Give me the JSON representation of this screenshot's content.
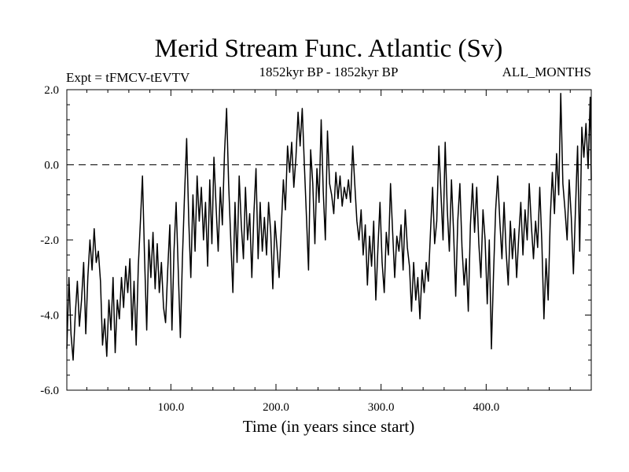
{
  "chart_data": {
    "type": "line",
    "title": "Merid Stream Func. Atlantic (Sv)",
    "subtitle_left": "Expt = tFMCV-tEVTV",
    "subtitle_center": "1852kyr BP - 1852kyr BP",
    "subtitle_right": "ALL_MONTHS",
    "xlabel": "Time (in years since start)",
    "ylabel": "",
    "xlim": [
      1,
      500
    ],
    "ylim": [
      -6.0,
      2.0
    ],
    "xticks": [
      100,
      200,
      300,
      400
    ],
    "xtick_labels": [
      "100.0",
      "200.0",
      "300.0",
      "400.0"
    ],
    "yticks": [
      2.0,
      0.0,
      -2.0,
      -4.0,
      -6.0
    ],
    "ytick_labels": [
      "2.0",
      "0.0",
      "-2.0",
      "-4.0",
      "-6.0"
    ],
    "reference_line": {
      "y": 0.0,
      "style": "dashed"
    },
    "series": [
      {
        "name": "Merid Stream Func. Atlantic",
        "color": "#000000",
        "anchors": [
          [
            1,
            -4.9
          ],
          [
            3,
            -3.0
          ],
          [
            5,
            -4.5
          ],
          [
            7,
            -5.2
          ],
          [
            9,
            -4.0
          ],
          [
            11,
            -3.1
          ],
          [
            13,
            -4.3
          ],
          [
            15,
            -3.6
          ],
          [
            17,
            -2.6
          ],
          [
            19,
            -4.5
          ],
          [
            21,
            -3.0
          ],
          [
            23,
            -2.0
          ],
          [
            25,
            -2.8
          ],
          [
            27,
            -1.7
          ],
          [
            29,
            -2.6
          ],
          [
            31,
            -2.3
          ],
          [
            33,
            -3.1
          ],
          [
            35,
            -4.8
          ],
          [
            37,
            -4.1
          ],
          [
            39,
            -5.1
          ],
          [
            41,
            -3.6
          ],
          [
            43,
            -4.4
          ],
          [
            45,
            -3.0
          ],
          [
            47,
            -5.0
          ],
          [
            49,
            -3.6
          ],
          [
            51,
            -4.1
          ],
          [
            53,
            -3.0
          ],
          [
            55,
            -3.8
          ],
          [
            57,
            -2.7
          ],
          [
            59,
            -3.4
          ],
          [
            61,
            -2.5
          ],
          [
            63,
            -4.4
          ],
          [
            65,
            -3.1
          ],
          [
            67,
            -4.8
          ],
          [
            69,
            -2.7
          ],
          [
            71,
            -1.5
          ],
          [
            73,
            -0.3
          ],
          [
            75,
            -2.5
          ],
          [
            77,
            -4.4
          ],
          [
            79,
            -2.0
          ],
          [
            81,
            -3.0
          ],
          [
            83,
            -1.8
          ],
          [
            85,
            -3.3
          ],
          [
            87,
            -2.1
          ],
          [
            89,
            -3.4
          ],
          [
            91,
            -2.6
          ],
          [
            93,
            -3.8
          ],
          [
            95,
            -4.2
          ],
          [
            97,
            -2.8
          ],
          [
            99,
            -1.6
          ],
          [
            101,
            -4.4
          ],
          [
            103,
            -2.3
          ],
          [
            105,
            -1.0
          ],
          [
            107,
            -2.8
          ],
          [
            109,
            -4.6
          ],
          [
            111,
            -2.5
          ],
          [
            113,
            -0.8
          ],
          [
            115,
            0.7
          ],
          [
            117,
            -1.5
          ],
          [
            119,
            -3.0
          ],
          [
            121,
            -0.8
          ],
          [
            123,
            -2.3
          ],
          [
            125,
            -0.3
          ],
          [
            127,
            -1.5
          ],
          [
            129,
            -0.6
          ],
          [
            131,
            -2.0
          ],
          [
            133,
            -1.0
          ],
          [
            135,
            -2.7
          ],
          [
            137,
            -0.4
          ],
          [
            139,
            -2.1
          ],
          [
            141,
            0.2
          ],
          [
            143,
            -1.1
          ],
          [
            145,
            -2.3
          ],
          [
            147,
            -0.6
          ],
          [
            149,
            -1.6
          ],
          [
            151,
            0.3
          ],
          [
            153,
            1.5
          ],
          [
            155,
            -0.5
          ],
          [
            157,
            -2.0
          ],
          [
            159,
            -3.4
          ],
          [
            161,
            -1.0
          ],
          [
            163,
            -2.6
          ],
          [
            165,
            -0.3
          ],
          [
            167,
            -1.6
          ],
          [
            169,
            -2.5
          ],
          [
            171,
            -0.6
          ],
          [
            173,
            -2.0
          ],
          [
            175,
            -1.3
          ],
          [
            177,
            -3.0
          ],
          [
            179,
            -1.3
          ],
          [
            181,
            -0.1
          ],
          [
            183,
            -2.5
          ],
          [
            185,
            -1.0
          ],
          [
            187,
            -2.3
          ],
          [
            189,
            -1.4
          ],
          [
            191,
            -2.4
          ],
          [
            193,
            -1.0
          ],
          [
            195,
            -1.8
          ],
          [
            197,
            -3.3
          ],
          [
            199,
            -1.5
          ],
          [
            201,
            -2.2
          ],
          [
            203,
            -3.0
          ],
          [
            205,
            -1.7
          ],
          [
            207,
            -0.4
          ],
          [
            209,
            -1.2
          ],
          [
            211,
            0.5
          ],
          [
            213,
            -0.2
          ],
          [
            215,
            0.6
          ],
          [
            217,
            -0.6
          ],
          [
            219,
            0.2
          ],
          [
            221,
            1.4
          ],
          [
            223,
            0.5
          ],
          [
            225,
            1.5
          ],
          [
            227,
            0.0
          ],
          [
            229,
            -1.4
          ],
          [
            231,
            -2.8
          ],
          [
            233,
            0.4
          ],
          [
            235,
            -0.5
          ],
          [
            237,
            -2.1
          ],
          [
            239,
            -0.1
          ],
          [
            241,
            -1.0
          ],
          [
            243,
            1.2
          ],
          [
            245,
            -0.7
          ],
          [
            247,
            -2.0
          ],
          [
            249,
            0.9
          ],
          [
            251,
            -0.5
          ],
          [
            253,
            -0.8
          ],
          [
            255,
            -1.3
          ],
          [
            257,
            -0.2
          ],
          [
            259,
            -0.9
          ],
          [
            261,
            -0.3
          ],
          [
            263,
            -1.1
          ],
          [
            265,
            -0.6
          ],
          [
            267,
            -0.9
          ],
          [
            269,
            -0.4
          ],
          [
            271,
            -1.0
          ],
          [
            273,
            0.5
          ],
          [
            275,
            -0.5
          ],
          [
            277,
            -1.5
          ],
          [
            279,
            -2.0
          ],
          [
            281,
            -1.2
          ],
          [
            283,
            -2.4
          ],
          [
            285,
            -1.6
          ],
          [
            287,
            -3.2
          ],
          [
            289,
            -1.9
          ],
          [
            291,
            -2.7
          ],
          [
            293,
            -1.5
          ],
          [
            295,
            -3.6
          ],
          [
            297,
            -2.2
          ],
          [
            299,
            -1.0
          ],
          [
            301,
            -2.6
          ],
          [
            303,
            -3.4
          ],
          [
            305,
            -1.8
          ],
          [
            307,
            -2.4
          ],
          [
            309,
            -0.5
          ],
          [
            311,
            -1.8
          ],
          [
            313,
            -3.0
          ],
          [
            315,
            -1.9
          ],
          [
            317,
            -2.3
          ],
          [
            319,
            -1.6
          ],
          [
            321,
            -2.8
          ],
          [
            323,
            -1.2
          ],
          [
            325,
            -2.2
          ],
          [
            327,
            -2.7
          ],
          [
            329,
            -3.9
          ],
          [
            331,
            -2.6
          ],
          [
            333,
            -3.6
          ],
          [
            335,
            -3.0
          ],
          [
            337,
            -4.1
          ],
          [
            339,
            -2.8
          ],
          [
            341,
            -3.4
          ],
          [
            343,
            -2.6
          ],
          [
            345,
            -3.1
          ],
          [
            347,
            -1.8
          ],
          [
            349,
            -0.6
          ],
          [
            351,
            -2.1
          ],
          [
            353,
            -1.5
          ],
          [
            355,
            0.5
          ],
          [
            357,
            -0.8
          ],
          [
            359,
            -2.0
          ],
          [
            361,
            0.6
          ],
          [
            363,
            -1.2
          ],
          [
            365,
            -2.3
          ],
          [
            367,
            -0.4
          ],
          [
            369,
            -1.8
          ],
          [
            371,
            -3.5
          ],
          [
            373,
            -1.5
          ],
          [
            375,
            -0.5
          ],
          [
            377,
            -2.2
          ],
          [
            379,
            -3.2
          ],
          [
            381,
            -2.5
          ],
          [
            383,
            -3.9
          ],
          [
            385,
            -1.6
          ],
          [
            387,
            -0.5
          ],
          [
            389,
            -1.8
          ],
          [
            391,
            -0.6
          ],
          [
            393,
            -2.1
          ],
          [
            395,
            -3.0
          ],
          [
            397,
            -1.2
          ],
          [
            399,
            -2.0
          ],
          [
            401,
            -3.7
          ],
          [
            403,
            -2.0
          ],
          [
            405,
            -4.9
          ],
          [
            407,
            -2.9
          ],
          [
            409,
            -1.2
          ],
          [
            411,
            -0.3
          ],
          [
            413,
            -1.5
          ],
          [
            415,
            -2.5
          ],
          [
            417,
            -1.0
          ],
          [
            419,
            -2.3
          ],
          [
            421,
            -3.2
          ],
          [
            423,
            -1.5
          ],
          [
            425,
            -2.5
          ],
          [
            427,
            -1.7
          ],
          [
            429,
            -3.0
          ],
          [
            431,
            -1.9
          ],
          [
            433,
            -1.0
          ],
          [
            435,
            -2.4
          ],
          [
            437,
            -1.2
          ],
          [
            439,
            -2.0
          ],
          [
            441,
            -0.5
          ],
          [
            443,
            -1.6
          ],
          [
            445,
            -2.5
          ],
          [
            447,
            -1.5
          ],
          [
            449,
            -2.2
          ],
          [
            451,
            -0.6
          ],
          [
            453,
            -2.1
          ],
          [
            455,
            -4.1
          ],
          [
            457,
            -2.5
          ],
          [
            459,
            -3.6
          ],
          [
            461,
            -1.4
          ],
          [
            463,
            -0.2
          ],
          [
            465,
            -1.3
          ],
          [
            467,
            0.3
          ],
          [
            469,
            -0.8
          ],
          [
            471,
            1.9
          ],
          [
            473,
            -0.5
          ],
          [
            475,
            -1.2
          ],
          [
            477,
            -2.0
          ],
          [
            479,
            -0.4
          ],
          [
            481,
            -1.4
          ],
          [
            483,
            -2.9
          ],
          [
            485,
            -1.2
          ],
          [
            487,
            0.5
          ],
          [
            489,
            -2.3
          ],
          [
            491,
            1.0
          ],
          [
            493,
            0.2
          ],
          [
            495,
            1.1
          ],
          [
            497,
            -0.1
          ],
          [
            499,
            1.8
          ],
          [
            500,
            -0.4
          ]
        ]
      }
    ]
  }
}
